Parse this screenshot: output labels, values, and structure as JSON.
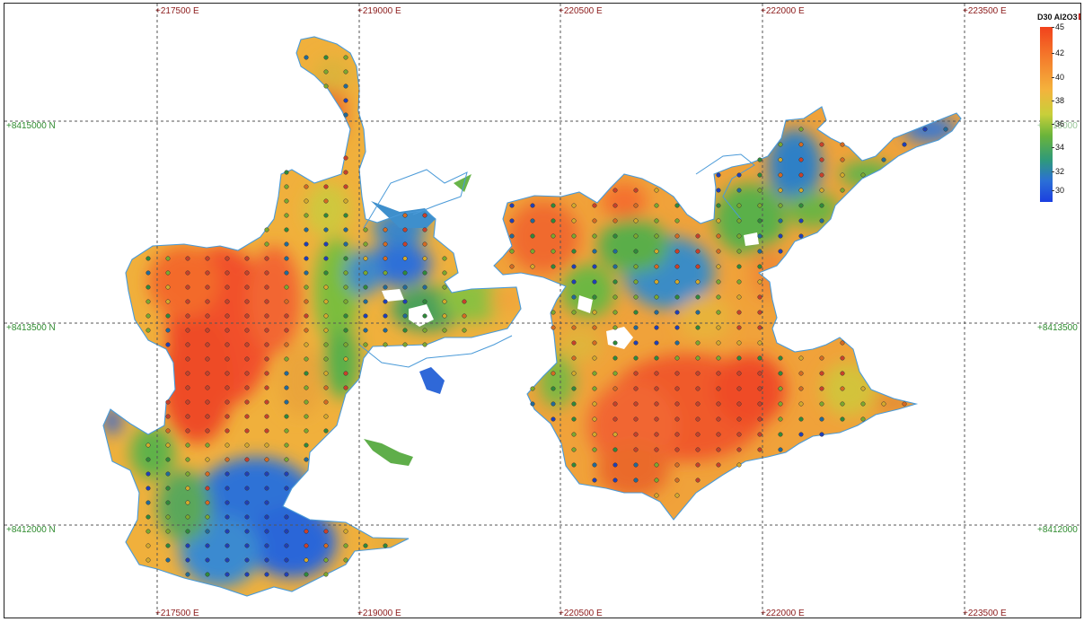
{
  "map": {
    "easting_labels": [
      "+217500 E",
      "+219000 E",
      "+220500 E",
      "+222000 E",
      "+223500 E"
    ],
    "northing_labels": [
      "+8415000 N",
      "+8413500 N",
      "+8412000 N"
    ],
    "colors": {
      "grid": "#555555",
      "easting_label": "#8b1a1a",
      "northing_label": "#2e8b2e",
      "boundary": "#4a9ad8"
    }
  },
  "legend": {
    "title": "D30 Al2O3",
    "ticks": [
      "45",
      "42",
      "40",
      "38",
      "36",
      "34",
      "32",
      "30"
    ],
    "close_icon": "close-icon",
    "color_ramp": [
      "#f2421c",
      "#f4b33c",
      "#c8cf3a",
      "#6ab43a",
      "#2f9a7a",
      "#1b3fe0"
    ]
  }
}
